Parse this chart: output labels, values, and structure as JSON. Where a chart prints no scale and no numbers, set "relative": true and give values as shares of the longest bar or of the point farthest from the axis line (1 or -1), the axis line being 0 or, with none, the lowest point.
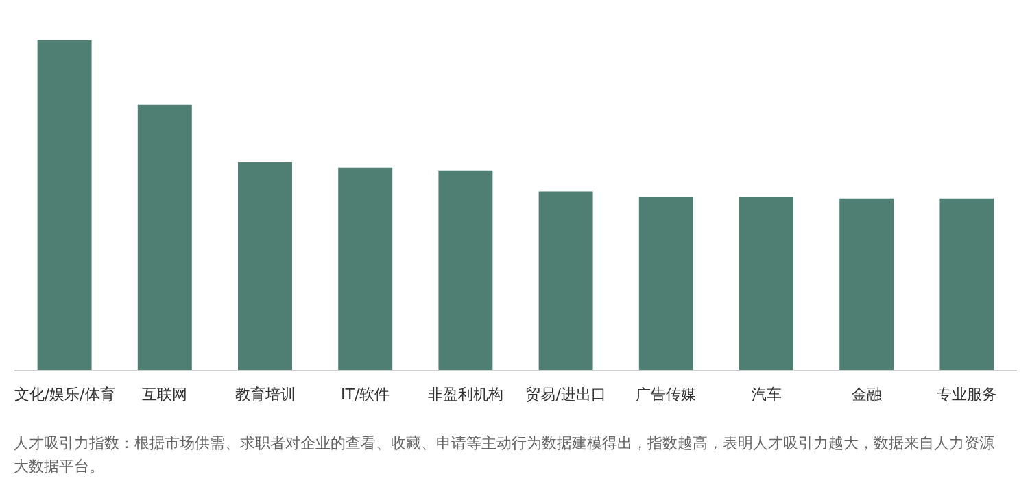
{
  "chart_data": {
    "type": "bar",
    "relative": true,
    "categories": [
      "文化/娱乐/体育",
      "互联网",
      "教育培训",
      "IT/软件",
      "非盈利机构",
      "贸易/进出口",
      "广告传媒",
      "汽车",
      "金融",
      "专业服务"
    ],
    "values": [
      1,
      0.805,
      0.631,
      0.614,
      0.606,
      0.542,
      0.525,
      0.525,
      0.521,
      0.521
    ],
    "color": "#4f7f72",
    "grid": false,
    "annotations": [
      "人才吸引力指数：根据市场供需、求职者对企业的查看、收藏、申请等主动行为数据建模得出，指数越高，表明人才吸引力越大，数据来自人力资源大数据平台。"
    ]
  }
}
